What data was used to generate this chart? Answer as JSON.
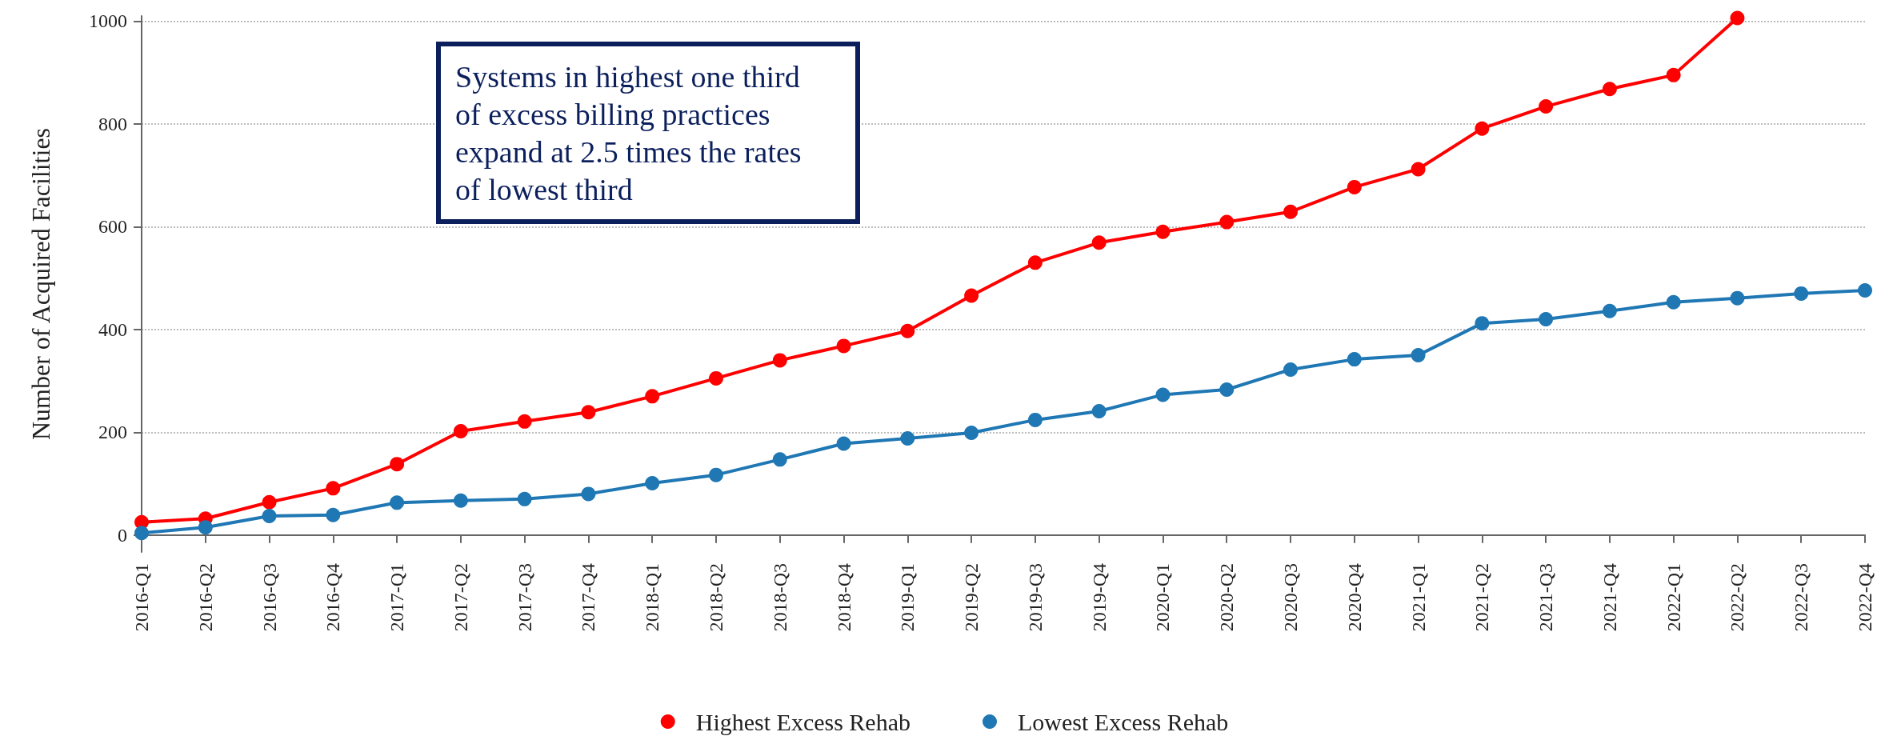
{
  "chart_data": {
    "type": "line",
    "ylabel": "Number of Acquired Facilities",
    "categories": [
      "2016-Q1",
      "2016-Q2",
      "2016-Q3",
      "2016-Q4",
      "2017-Q1",
      "2017-Q2",
      "2017-Q3",
      "2017-Q4",
      "2018-Q1",
      "2018-Q2",
      "2018-Q3",
      "2018-Q4",
      "2019-Q1",
      "2019-Q2",
      "2019-Q3",
      "2019-Q4",
      "2020-Q1",
      "2020-Q2",
      "2020-Q3",
      "2020-Q4",
      "2021-Q1",
      "2021-Q2",
      "2021-Q3",
      "2021-Q4",
      "2022-Q1",
      "2022-Q2",
      "2022-Q3",
      "2022-Q4"
    ],
    "series": [
      {
        "name": "Highest Excess Rehab",
        "color": "#ff0000",
        "values": [
          25,
          32,
          64,
          91,
          138,
          202,
          221,
          239,
          270,
          305,
          340,
          368,
          397,
          466,
          530,
          569,
          590,
          609,
          629,
          677,
          712,
          791,
          834,
          868,
          895,
          1006,
          null,
          null
        ]
      },
      {
        "name": "Lowest Excess Rehab",
        "color": "#1f77b4",
        "values": [
          4,
          15,
          37,
          39,
          63,
          67,
          70,
          80,
          101,
          117,
          147,
          178,
          188,
          199,
          224,
          241,
          273,
          283,
          322,
          342,
          350,
          412,
          420,
          436,
          453,
          461,
          470,
          476
        ]
      }
    ],
    "ylim": [
      -33,
      1010
    ],
    "yticks": [
      0,
      200,
      400,
      600,
      800,
      1000
    ],
    "grid": "y",
    "legend": "bottom",
    "marker": "circle",
    "line_style": "solid",
    "annotations": [
      "Systems in highest one third of excess billing practices expand at 2.5 times the rates of lowest third"
    ]
  }
}
